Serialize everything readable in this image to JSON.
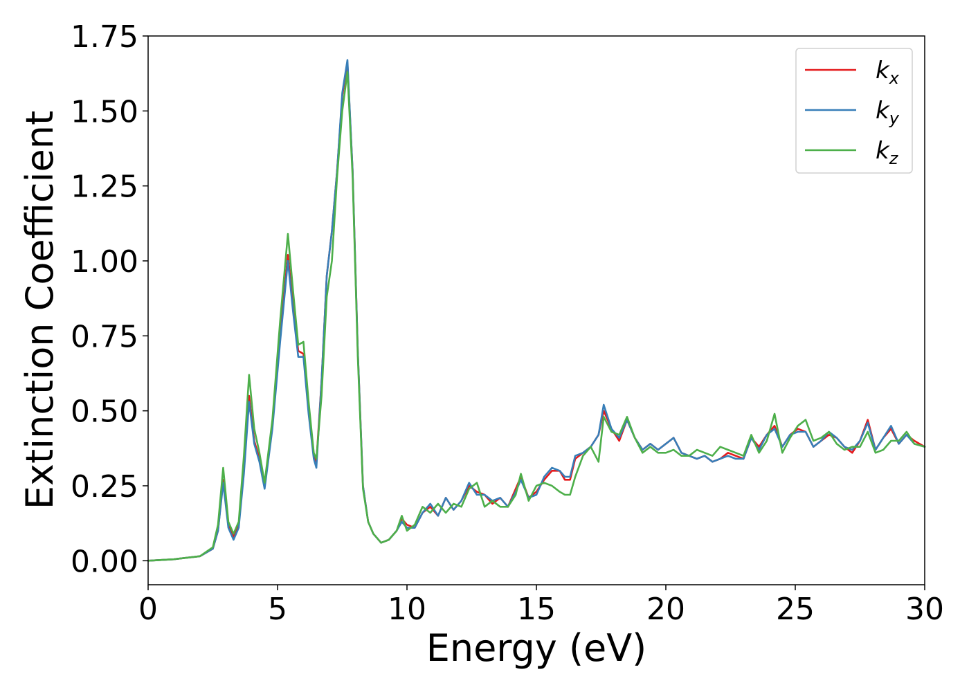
{
  "chart_data": {
    "type": "line",
    "title": "",
    "xlabel": "Energy (eV)",
    "ylabel": "Extinction Coefficient",
    "xlim": [
      0,
      30
    ],
    "ylim": [
      -0.08,
      1.75
    ],
    "xticks": [
      0,
      5,
      10,
      15,
      20,
      25,
      30
    ],
    "xtick_labels": [
      "0",
      "5",
      "10",
      "15",
      "20",
      "25",
      "30"
    ],
    "yticks": [
      0.0,
      0.25,
      0.5,
      0.75,
      1.0,
      1.25,
      1.5,
      1.75
    ],
    "ytick_labels": [
      "0.00",
      "0.25",
      "0.50",
      "0.75",
      "1.00",
      "1.25",
      "1.50",
      "1.75"
    ],
    "grid": false,
    "legend_position": "top-right",
    "series": [
      {
        "name": "k",
        "subscript": "x",
        "color": "#e41a1c",
        "x": [
          0,
          1,
          2,
          2.5,
          2.7,
          2.9,
          3.1,
          3.3,
          3.5,
          3.7,
          3.9,
          4.1,
          4.3,
          4.5,
          4.8,
          5.1,
          5.4,
          5.6,
          5.8,
          6.0,
          6.2,
          6.4,
          6.5,
          6.7,
          6.9,
          7.1,
          7.3,
          7.5,
          7.7,
          7.9,
          8.1,
          8.3,
          8.5,
          8.7,
          9.0,
          9.3,
          9.6,
          9.8,
          10.0,
          10.3,
          10.6,
          10.9,
          11.2,
          11.5,
          11.8,
          12.1,
          12.4,
          12.7,
          13.0,
          13.3,
          13.6,
          13.9,
          14.2,
          14.4,
          14.7,
          15.0,
          15.3,
          15.6,
          15.9,
          16.1,
          16.3,
          16.5,
          16.8,
          17.1,
          17.4,
          17.6,
          17.9,
          18.2,
          18.5,
          18.8,
          19.1,
          19.4,
          19.7,
          20.0,
          20.3,
          20.6,
          20.9,
          21.2,
          21.5,
          21.8,
          22.1,
          22.4,
          22.7,
          23.0,
          23.3,
          23.6,
          23.9,
          24.2,
          24.5,
          24.8,
          25.1,
          25.4,
          25.7,
          26.0,
          26.3,
          26.6,
          26.9,
          27.2,
          27.5,
          27.8,
          28.1,
          28.4,
          28.7,
          29.0,
          29.3,
          29.6,
          30.0
        ],
        "values": [
          0.0,
          0.005,
          0.015,
          0.04,
          0.1,
          0.27,
          0.12,
          0.08,
          0.12,
          0.3,
          0.55,
          0.4,
          0.34,
          0.25,
          0.45,
          0.75,
          1.02,
          0.85,
          0.7,
          0.69,
          0.5,
          0.35,
          0.33,
          0.6,
          0.95,
          1.1,
          1.3,
          1.55,
          1.66,
          1.3,
          0.7,
          0.25,
          0.13,
          0.09,
          0.06,
          0.07,
          0.1,
          0.14,
          0.12,
          0.11,
          0.16,
          0.18,
          0.15,
          0.21,
          0.17,
          0.2,
          0.25,
          0.23,
          0.22,
          0.19,
          0.21,
          0.18,
          0.24,
          0.28,
          0.21,
          0.23,
          0.27,
          0.3,
          0.3,
          0.27,
          0.27,
          0.34,
          0.36,
          0.38,
          0.42,
          0.5,
          0.44,
          0.4,
          0.47,
          0.41,
          0.37,
          0.39,
          0.37,
          0.39,
          0.41,
          0.36,
          0.35,
          0.34,
          0.35,
          0.33,
          0.34,
          0.36,
          0.35,
          0.34,
          0.41,
          0.38,
          0.42,
          0.45,
          0.38,
          0.42,
          0.44,
          0.43,
          0.38,
          0.4,
          0.42,
          0.41,
          0.38,
          0.36,
          0.4,
          0.47,
          0.37,
          0.41,
          0.44,
          0.39,
          0.42,
          0.4,
          0.38
        ]
      },
      {
        "name": "k",
        "subscript": "y",
        "color": "#377eb8",
        "x": [
          0,
          1,
          2,
          2.5,
          2.7,
          2.9,
          3.1,
          3.3,
          3.5,
          3.7,
          3.9,
          4.1,
          4.3,
          4.5,
          4.8,
          5.1,
          5.4,
          5.6,
          5.8,
          6.0,
          6.2,
          6.4,
          6.5,
          6.7,
          6.9,
          7.1,
          7.3,
          7.5,
          7.7,
          7.9,
          8.1,
          8.3,
          8.5,
          8.7,
          9.0,
          9.3,
          9.6,
          9.8,
          10.0,
          10.3,
          10.6,
          10.9,
          11.2,
          11.5,
          11.8,
          12.1,
          12.4,
          12.7,
          13.0,
          13.3,
          13.6,
          13.9,
          14.2,
          14.4,
          14.7,
          15.0,
          15.3,
          15.6,
          15.9,
          16.1,
          16.3,
          16.5,
          16.8,
          17.1,
          17.4,
          17.6,
          17.9,
          18.2,
          18.5,
          18.8,
          19.1,
          19.4,
          19.7,
          20.0,
          20.3,
          20.6,
          20.9,
          21.2,
          21.5,
          21.8,
          22.1,
          22.4,
          22.7,
          23.0,
          23.3,
          23.6,
          23.9,
          24.2,
          24.5,
          24.8,
          25.1,
          25.4,
          25.7,
          26.0,
          26.3,
          26.6,
          26.9,
          27.2,
          27.5,
          27.8,
          28.1,
          28.4,
          28.7,
          29.0,
          29.3,
          29.6,
          30.0
        ],
        "values": [
          0.0,
          0.005,
          0.015,
          0.04,
          0.1,
          0.26,
          0.11,
          0.07,
          0.11,
          0.29,
          0.53,
          0.39,
          0.33,
          0.24,
          0.44,
          0.73,
          1.0,
          0.83,
          0.68,
          0.68,
          0.49,
          0.34,
          0.31,
          0.6,
          0.95,
          1.1,
          1.3,
          1.56,
          1.67,
          1.3,
          0.7,
          0.25,
          0.13,
          0.09,
          0.06,
          0.07,
          0.1,
          0.13,
          0.11,
          0.11,
          0.16,
          0.19,
          0.15,
          0.21,
          0.17,
          0.2,
          0.26,
          0.22,
          0.22,
          0.2,
          0.21,
          0.18,
          0.23,
          0.27,
          0.21,
          0.22,
          0.28,
          0.31,
          0.3,
          0.28,
          0.28,
          0.35,
          0.36,
          0.38,
          0.42,
          0.52,
          0.44,
          0.41,
          0.47,
          0.41,
          0.37,
          0.39,
          0.37,
          0.39,
          0.41,
          0.36,
          0.35,
          0.34,
          0.35,
          0.33,
          0.34,
          0.35,
          0.34,
          0.34,
          0.41,
          0.37,
          0.42,
          0.44,
          0.38,
          0.42,
          0.43,
          0.43,
          0.38,
          0.4,
          0.43,
          0.41,
          0.38,
          0.37,
          0.4,
          0.46,
          0.37,
          0.41,
          0.45,
          0.39,
          0.42,
          0.39,
          0.38
        ]
      },
      {
        "name": "k",
        "subscript": "z",
        "color": "#4daf4a",
        "x": [
          0,
          1,
          2,
          2.5,
          2.7,
          2.9,
          3.1,
          3.3,
          3.5,
          3.7,
          3.9,
          4.1,
          4.3,
          4.5,
          4.8,
          5.1,
          5.4,
          5.6,
          5.8,
          6.0,
          6.2,
          6.4,
          6.5,
          6.7,
          6.9,
          7.1,
          7.3,
          7.5,
          7.7,
          7.9,
          8.1,
          8.3,
          8.5,
          8.7,
          9.0,
          9.3,
          9.6,
          9.8,
          10.0,
          10.3,
          10.6,
          10.9,
          11.2,
          11.5,
          11.8,
          12.1,
          12.4,
          12.7,
          13.0,
          13.3,
          13.6,
          13.9,
          14.2,
          14.4,
          14.7,
          15.0,
          15.3,
          15.6,
          15.9,
          16.1,
          16.3,
          16.5,
          16.8,
          17.1,
          17.4,
          17.6,
          17.9,
          18.2,
          18.5,
          18.8,
          19.1,
          19.4,
          19.7,
          20.0,
          20.3,
          20.6,
          20.9,
          21.2,
          21.5,
          21.8,
          22.1,
          22.4,
          22.7,
          23.0,
          23.3,
          23.6,
          23.9,
          24.2,
          24.5,
          24.8,
          25.1,
          25.4,
          25.7,
          26.0,
          26.3,
          26.6,
          26.9,
          27.2,
          27.5,
          27.8,
          28.1,
          28.4,
          28.7,
          29.0,
          29.3,
          29.6,
          30.0
        ],
        "values": [
          0.0,
          0.005,
          0.015,
          0.045,
          0.12,
          0.31,
          0.13,
          0.09,
          0.13,
          0.35,
          0.62,
          0.44,
          0.36,
          0.26,
          0.47,
          0.8,
          1.09,
          0.9,
          0.72,
          0.73,
          0.53,
          0.36,
          0.34,
          0.55,
          0.88,
          1.0,
          1.28,
          1.5,
          1.63,
          1.28,
          0.68,
          0.24,
          0.13,
          0.09,
          0.06,
          0.07,
          0.1,
          0.15,
          0.1,
          0.12,
          0.18,
          0.16,
          0.19,
          0.16,
          0.19,
          0.18,
          0.24,
          0.26,
          0.18,
          0.2,
          0.18,
          0.18,
          0.22,
          0.29,
          0.2,
          0.25,
          0.26,
          0.25,
          0.23,
          0.22,
          0.22,
          0.28,
          0.35,
          0.38,
          0.33,
          0.48,
          0.43,
          0.42,
          0.48,
          0.41,
          0.36,
          0.38,
          0.36,
          0.36,
          0.37,
          0.35,
          0.35,
          0.37,
          0.36,
          0.35,
          0.38,
          0.37,
          0.36,
          0.35,
          0.42,
          0.36,
          0.4,
          0.49,
          0.36,
          0.41,
          0.45,
          0.47,
          0.4,
          0.41,
          0.43,
          0.39,
          0.37,
          0.38,
          0.38,
          0.43,
          0.36,
          0.37,
          0.4,
          0.4,
          0.43,
          0.39,
          0.38
        ]
      }
    ]
  }
}
